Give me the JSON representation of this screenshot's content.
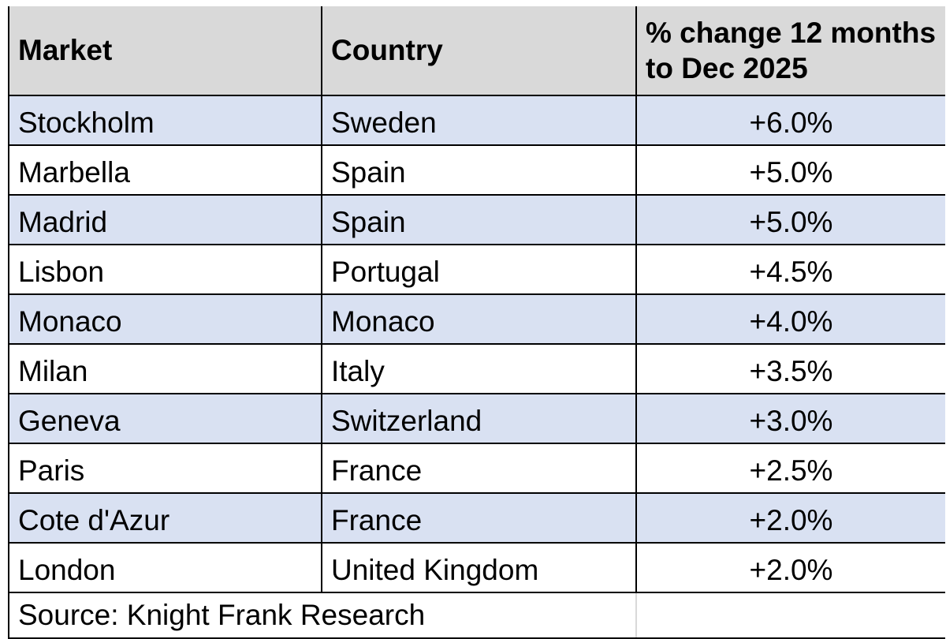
{
  "table": {
    "columns": [
      "Market",
      "Country",
      "% change 12 months to Dec 2025"
    ],
    "rows": [
      {
        "market": "Stockholm",
        "country": "Sweden",
        "change": "+6.0%"
      },
      {
        "market": "Marbella",
        "country": "Spain",
        "change": "+5.0%"
      },
      {
        "market": "Madrid",
        "country": "Spain",
        "change": "+5.0%"
      },
      {
        "market": "Lisbon",
        "country": "Portugal",
        "change": "+4.5%"
      },
      {
        "market": "Monaco",
        "country": "Monaco",
        "change": "+4.0%"
      },
      {
        "market": "Milan",
        "country": "Italy",
        "change": "+3.5%"
      },
      {
        "market": "Geneva",
        "country": "Switzerland",
        "change": "+3.0%"
      },
      {
        "market": "Paris",
        "country": "France",
        "change": "+2.5%"
      },
      {
        "market": "Cote d'Azur",
        "country": "France",
        "change": "+2.0%"
      },
      {
        "market": "London",
        "country": "United Kingdom",
        "change": "+2.0%"
      }
    ],
    "source_note": "Source: Knight Frank Research"
  },
  "colors": {
    "page_bg": "#ffffff",
    "header_bg": "#d9d9d9",
    "band_bg": "#d9e1f2",
    "border": "#000000",
    "faint_divider": "#d9d9d9",
    "text": "#000000"
  },
  "chart_data": {
    "type": "table",
    "title": "",
    "columns": [
      "Market",
      "Country",
      "% change 12 months to Dec 2025"
    ],
    "rows": [
      [
        "Stockholm",
        "Sweden",
        "+6.0%"
      ],
      [
        "Marbella",
        "Spain",
        "+5.0%"
      ],
      [
        "Madrid",
        "Spain",
        "+5.0%"
      ],
      [
        "Lisbon",
        "Portugal",
        "+4.5%"
      ],
      [
        "Monaco",
        "Monaco",
        "+4.0%"
      ],
      [
        "Milan",
        "Italy",
        "+3.5%"
      ],
      [
        "Geneva",
        "Switzerland",
        "+3.0%"
      ],
      [
        "Paris",
        "France",
        "+2.5%"
      ],
      [
        "Cote d'Azur",
        "France",
        "+2.0%"
      ],
      [
        "London",
        "United Kingdom",
        "+2.0%"
      ]
    ],
    "values_numeric_pct": [
      6.0,
      5.0,
      5.0,
      4.5,
      4.0,
      3.5,
      3.0,
      2.5,
      2.0,
      2.0
    ],
    "source": "Source: Knight Frank Research",
    "layout": {
      "banded_rows": true,
      "band_start": "first_data_row",
      "value_column_alignment": "center",
      "gridlines": true
    }
  }
}
